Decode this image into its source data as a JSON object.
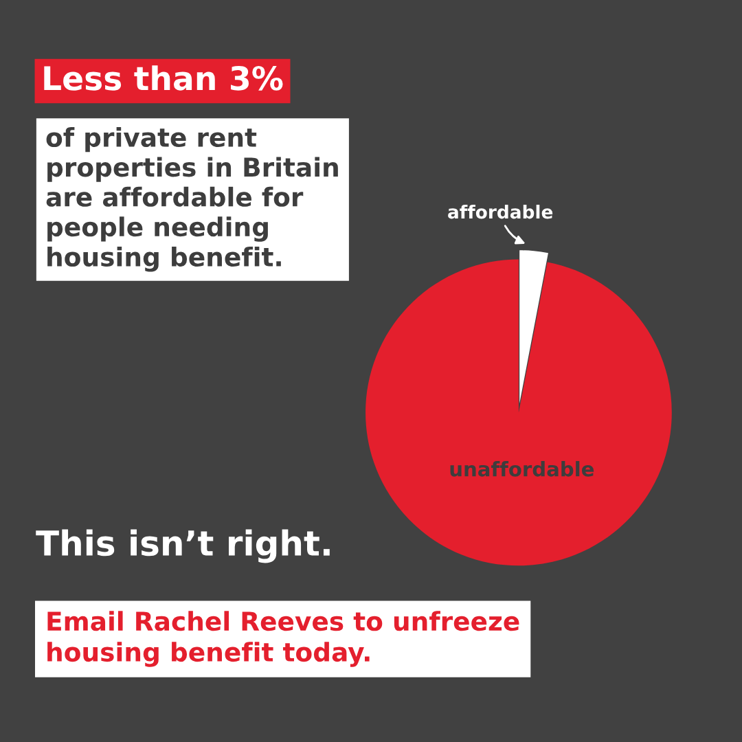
{
  "chart_data": {
    "type": "pie",
    "title": "Less than 3%",
    "subtitle": "of private rent\nproperties in Britain\nare affordable for\npeople needing\nhousing benefit.",
    "categories": [
      "affordable",
      "unaffordable"
    ],
    "values": [
      3,
      97
    ],
    "colors": [
      "#ffffff",
      "#e41f2d"
    ],
    "annotations": [
      "This isn’t right.",
      "Email Rachel Reeves to unfreeze\nhousing benefit today."
    ],
    "legend": false
  }
}
